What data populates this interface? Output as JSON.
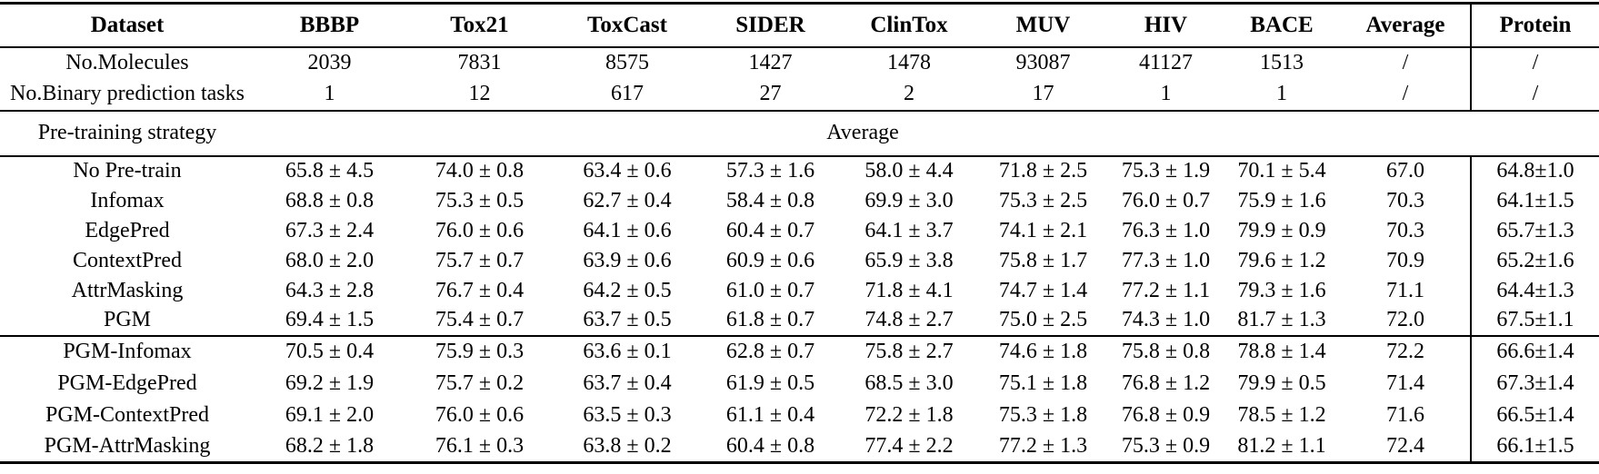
{
  "table": {
    "columns": [
      "Dataset",
      "BBBP",
      "Tox21",
      "ToxCast",
      "SIDER",
      "ClinTox",
      "MUV",
      "HIV",
      "BACE",
      "Average",
      "Protein"
    ],
    "info_rows": [
      {
        "label": "No.Molecules",
        "values": [
          "2039",
          "7831",
          "8575",
          "1427",
          "1478",
          "93087",
          "41127",
          "1513",
          "/",
          "/"
        ]
      },
      {
        "label": "No.Binary prediction tasks",
        "values": [
          "1",
          "12",
          "617",
          "27",
          "2",
          "17",
          "1",
          "1",
          "/",
          "/"
        ]
      }
    ],
    "band": {
      "label": "Pre-training strategy",
      "span_label": "Average"
    },
    "groups": [
      {
        "rows": [
          {
            "label": "No Pre-train",
            "cells": [
              "65.8 ± 4.5",
              "74.0 ± 0.8",
              "63.4 ± 0.6",
              "57.3 ± 1.6",
              "58.0 ± 4.4",
              "71.8 ± 2.5",
              "75.3 ± 1.9",
              "70.1 ± 5.4",
              "67.0",
              "64.8±1.0"
            ],
            "bold": []
          },
          {
            "label": "Infomax",
            "cells": [
              "68.8 ± 0.8",
              "75.3 ± 0.5",
              "62.7 ± 0.4",
              "58.4 ± 0.8",
              "69.9 ± 3.0",
              "75.3 ± 2.5",
              "76.0 ± 0.7",
              "75.9 ± 1.6",
              "70.3",
              "64.1±1.5"
            ],
            "bold": []
          },
          {
            "label": "EdgePred",
            "cells": [
              "67.3 ± 2.4",
              "76.0 ± 0.6",
              "64.1 ± 0.6",
              "60.4 ± 0.7",
              "64.1 ± 3.7",
              "74.1 ± 2.1",
              "76.3 ± 1.0",
              "79.9 ± 0.9",
              "70.3",
              "65.7±1.3"
            ],
            "bold": []
          },
          {
            "label": "ContextPred",
            "cells": [
              "68.0 ± 2.0",
              "75.7 ± 0.7",
              "63.9 ± 0.6",
              "60.9 ± 0.6",
              "65.9 ± 3.8",
              "75.8 ± 1.7",
              "77.3 ± 1.0",
              "79.6 ± 1.2",
              "70.9",
              "65.2±1.6"
            ],
            "bold": [
              5,
              6
            ]
          },
          {
            "label": "AttrMasking",
            "cells": [
              "64.3 ± 2.8",
              "76.7 ± 0.4",
              "64.2 ± 0.5",
              "61.0 ± 0.7",
              "71.8 ± 4.1",
              "74.7 ± 1.4",
              "77.2 ± 1.1",
              "79.3 ± 1.6",
              "71.1",
              "64.4±1.3"
            ],
            "bold": [
              1,
              2
            ]
          },
          {
            "label": "PGM",
            "cells": [
              "69.4 ± 1.5",
              "75.4 ± 0.7",
              "63.7 ± 0.5",
              "61.8 ± 0.7",
              "74.8 ± 2.7",
              "75.0 ± 2.5",
              "74.3 ± 1.0",
              "81.7 ± 1.3",
              "72.0",
              "67.5±1.1"
            ],
            "bold": [
              0,
              3,
              4,
              7,
              8,
              9
            ]
          }
        ]
      },
      {
        "rows": [
          {
            "label": "PGM-Infomax",
            "cells": [
              "70.5 ± 0.4",
              "75.9 ± 0.3",
              "63.6 ± 0.1",
              "62.8 ± 0.7",
              "75.8 ± 2.7",
              "74.6 ± 1.8",
              "75.8 ± 0.8",
              "78.8 ± 1.4",
              "72.2",
              "66.6±1.4"
            ],
            "bold": [
              0,
              3
            ]
          },
          {
            "label": "PGM-EdgePred",
            "cells": [
              "69.2 ± 1.9",
              "75.7 ± 0.2",
              "63.7 ± 0.4",
              "61.9 ± 0.5",
              "68.5 ± 3.0",
              "75.1 ± 1.8",
              "76.8 ± 1.2",
              "79.9 ± 0.5",
              "71.4",
              "67.3±1.4"
            ],
            "bold": [
              9
            ]
          },
          {
            "label": "PGM-ContextPred",
            "cells": [
              "69.1 ± 2.0",
              "76.0 ± 0.6",
              "63.5 ± 0.3",
              "61.1 ± 0.4",
              "72.2 ± 1.8",
              "75.3 ± 1.8",
              "76.8 ± 0.9",
              "78.5 ± 1.2",
              "71.6",
              "66.5±1.4"
            ],
            "bold": [
              6
            ]
          },
          {
            "label": "PGM-AttrMasking",
            "cells": [
              "68.2 ± 1.8",
              "76.1 ± 0.3",
              "63.8 ± 0.2",
              "60.4 ± 0.8",
              "77.4 ± 2.2",
              "77.2 ± 1.3",
              "75.3 ± 0.9",
              "81.2 ± 1.1",
              "72.4",
              "66.1±1.5"
            ],
            "bold": [
              1,
              2,
              4,
              5,
              7,
              8
            ]
          }
        ]
      }
    ]
  }
}
